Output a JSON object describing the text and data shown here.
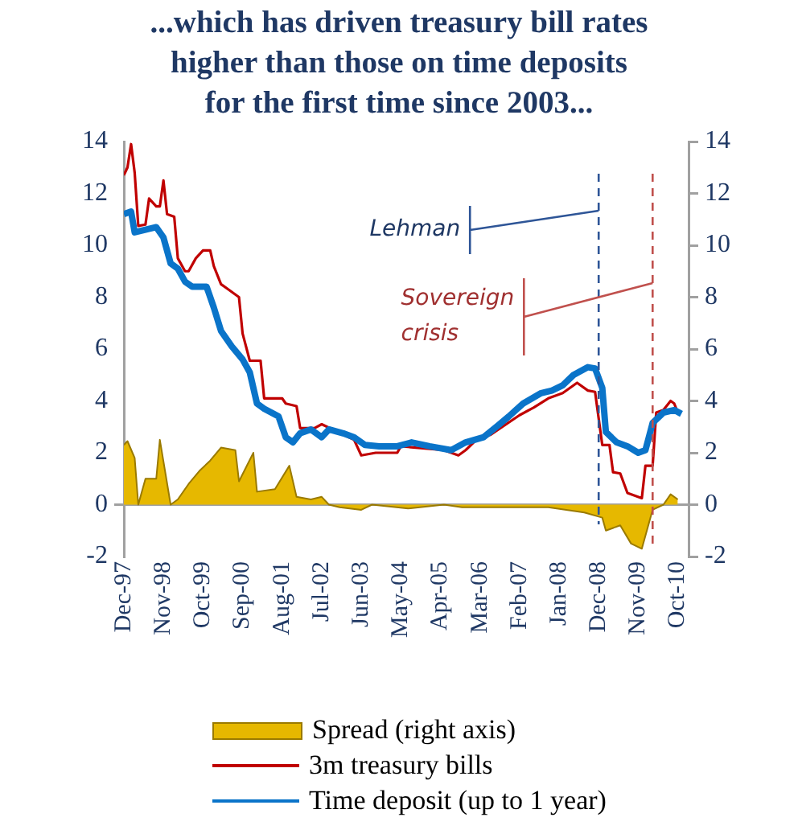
{
  "chart_data": {
    "type": "line",
    "title": "...which has driven treasury bill rates higher than those on time deposits for the first time since 2003...",
    "xlim": [
      "1997-12",
      "2011-01"
    ],
    "xticks": [
      {
        "value": "1997-12",
        "label": "Dec-97"
      },
      {
        "value": "1998-11",
        "label": "Nov-98"
      },
      {
        "value": "1999-10",
        "label": "Oct-99"
      },
      {
        "value": "2000-09",
        "label": "Sep-00"
      },
      {
        "value": "2001-08",
        "label": "Aug-01"
      },
      {
        "value": "2002-07",
        "label": "Jul-02"
      },
      {
        "value": "2003-06",
        "label": "Jun-03"
      },
      {
        "value": "2004-05",
        "label": "May-04"
      },
      {
        "value": "2005-04",
        "label": "Apr-05"
      },
      {
        "value": "2006-03",
        "label": "Mar-06"
      },
      {
        "value": "2007-02",
        "label": "Feb-07"
      },
      {
        "value": "2008-01",
        "label": "Jan-08"
      },
      {
        "value": "2008-12",
        "label": "Dec-08"
      },
      {
        "value": "2009-11",
        "label": "Nov-09"
      },
      {
        "value": "2010-10",
        "label": "Oct-10"
      }
    ],
    "ylim": [
      -2,
      14
    ],
    "yticks": [
      -2,
      0,
      2,
      4,
      6,
      8,
      10,
      12,
      14
    ],
    "y2lim": [
      -2,
      14
    ],
    "y2ticks": [
      -2,
      0,
      2,
      4,
      6,
      8,
      10,
      12,
      14
    ],
    "legend": "bottom",
    "marker": "none",
    "series": [
      {
        "name": "Spread (right axis)",
        "type": "area",
        "axis": "y2",
        "color": "#e6b800",
        "x": [
          "1997-12",
          "1998-01",
          "1998-03",
          "1998-04",
          "1998-06",
          "1998-09",
          "1998-10",
          "1999-01",
          "1999-03",
          "1999-06",
          "1999-09",
          "1999-12",
          "2000-03",
          "2000-07",
          "2000-08",
          "2000-12",
          "2001-01",
          "2001-06",
          "2001-10",
          "2001-12",
          "2002-04",
          "2002-07",
          "2002-09",
          "2002-12",
          "2003-06",
          "2003-09",
          "2004-07",
          "2005-05",
          "2005-10",
          "2006-06",
          "2007-10",
          "2008-08",
          "2009-01",
          "2009-02",
          "2009-06",
          "2009-09",
          "2009-12",
          "2010-02",
          "2010-03",
          "2010-06",
          "2010-08",
          "2010-10"
        ],
        "values": [
          2.3,
          2.45,
          1.8,
          0,
          1,
          1,
          2.5,
          0,
          0.2,
          0.8,
          1.3,
          1.7,
          2.2,
          2.1,
          0.9,
          2,
          0.5,
          0.6,
          1.5,
          0.3,
          0.2,
          0.3,
          0,
          -0.1,
          -0.2,
          0,
          -0.15,
          0,
          -0.1,
          -0.1,
          -0.1,
          -0.3,
          -0.5,
          -1,
          -0.8,
          -1.5,
          -1.7,
          -0.7,
          -0.2,
          0,
          0.4,
          0.2
        ]
      },
      {
        "name": "3m treasury bills",
        "type": "line",
        "color": "#c00000",
        "x": [
          "1997-12",
          "1998-01",
          "1998-02",
          "1998-03",
          "1998-04",
          "1998-06",
          "1998-07",
          "1998-09",
          "1998-10",
          "1998-11",
          "1998-12",
          "1999-02",
          "1999-03",
          "1999-05",
          "1999-06",
          "1999-08",
          "1999-10",
          "1999-12",
          "2000-01",
          "2000-03",
          "2000-05",
          "2000-08",
          "2000-09",
          "2000-11",
          "2001-02",
          "2001-03",
          "2001-08",
          "2001-09",
          "2001-12",
          "2002-01",
          "2002-05",
          "2002-07",
          "2002-12",
          "2003-04",
          "2003-06",
          "2003-10",
          "2004-04",
          "2004-05",
          "2005-05",
          "2005-07",
          "2005-09",
          "2005-11",
          "2006-02",
          "2006-06",
          "2006-09",
          "2007-02",
          "2007-06",
          "2007-10",
          "2008-02",
          "2008-06",
          "2008-09",
          "2008-11",
          "2009-01",
          "2009-03",
          "2009-04",
          "2009-06",
          "2009-08",
          "2009-10",
          "2009-12",
          "2010-01",
          "2010-03",
          "2010-04",
          "2010-06",
          "2010-08",
          "2010-09",
          "2010-10"
        ],
        "values": [
          12.7,
          13,
          13.9,
          12.8,
          10.75,
          10.8,
          11.8,
          11.5,
          11.5,
          12.5,
          11.2,
          11.1,
          9.5,
          9,
          9,
          9.5,
          9.8,
          9.8,
          9.2,
          8.5,
          8.3,
          8,
          6.6,
          5.55,
          5.55,
          4.1,
          4.1,
          3.9,
          3.8,
          2.95,
          2.95,
          3.1,
          null,
          2.5,
          1.9,
          2,
          2,
          2.25,
          2.1,
          2,
          1.9,
          2.1,
          2.5,
          2.7,
          null,
          3.45,
          3.75,
          4.1,
          4.3,
          4.7,
          4.4,
          4.35,
          2.3,
          2.3,
          1.25,
          1.2,
          0.45,
          0.35,
          0.25,
          1.5,
          1.5,
          3.55,
          3.65,
          4,
          3.9,
          3.55
        ]
      },
      {
        "name": "Time deposit (up to 1 year)",
        "type": "line",
        "color": "#0a74c9",
        "x": [
          "1997-12",
          "1998-02",
          "1998-03",
          "1998-06",
          "1998-09",
          "1998-11",
          "1999-01",
          "1999-03",
          "1999-05",
          "1999-07",
          "1999-11",
          "2000-01",
          "2000-03",
          "2000-06",
          "2000-09",
          "2000-11",
          "2001-01",
          "2001-03",
          "2001-07",
          "2001-09",
          "2001-11",
          "2002-01",
          "2002-04",
          "2002-07",
          "2002-09",
          "2003-01",
          "2003-04",
          "2003-07",
          "2003-11",
          "2004-04",
          "2004-08",
          "2005-01",
          "2005-07",
          "2005-11",
          "2006-04",
          "2006-08",
          "2006-11",
          "2007-03",
          "2007-08",
          "2007-11",
          "2008-02",
          "2008-05",
          "2008-09",
          "2008-11",
          "2009-01",
          "2009-02",
          "2009-05",
          "2009-08",
          "2009-11",
          "2010-01",
          "2010-03",
          "2010-06",
          "2010-09",
          "2010-11"
        ],
        "values": [
          11.2,
          11.3,
          10.5,
          10.6,
          10.7,
          10.3,
          9.3,
          9.1,
          8.6,
          8.4,
          8.4,
          7.6,
          6.7,
          6.1,
          5.6,
          5.1,
          3.9,
          3.7,
          3.4,
          2.6,
          2.4,
          2.75,
          2.9,
          2.6,
          2.9,
          2.75,
          2.6,
          2.3,
          2.25,
          2.25,
          2.4,
          2.25,
          2.1,
          2.4,
          2.6,
          3.05,
          3.4,
          3.9,
          4.3,
          4.4,
          4.6,
          5,
          5.3,
          5.25,
          4.5,
          2.8,
          2.4,
          2.25,
          2,
          2.1,
          3.15,
          3.55,
          3.65,
          3.5
        ]
      }
    ],
    "ref_lines": [
      {
        "axis": "x",
        "value": "2008-12",
        "label": "Lehman",
        "color": "#2e5597",
        "line_style": "dashed"
      },
      {
        "axis": "x",
        "value": "2010-03",
        "label": "Sovereign crisis",
        "color": "#c0504d",
        "line_style": "dashed"
      }
    ]
  }
}
